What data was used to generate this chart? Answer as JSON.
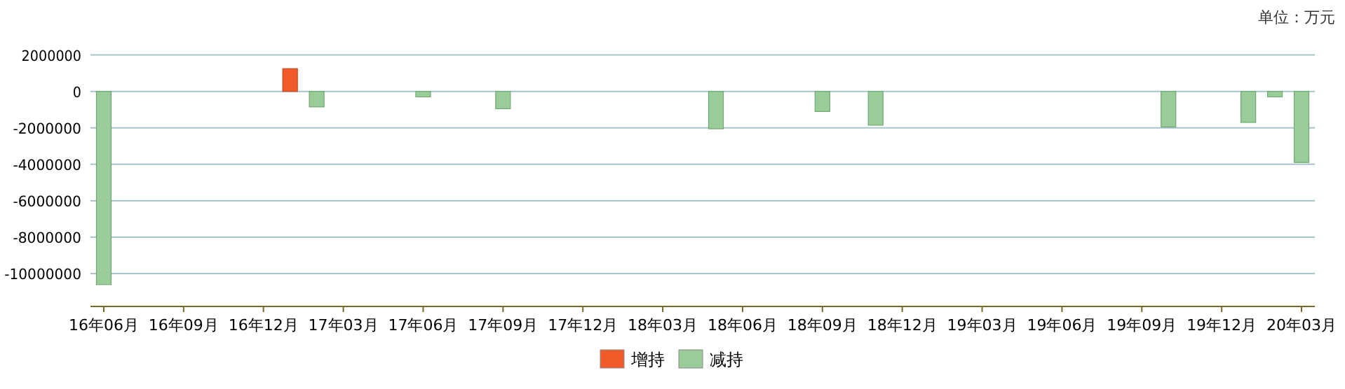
{
  "chart_data": {
    "type": "bar",
    "annotations": [
      "单位：万元"
    ],
    "categories": [
      "16年06月",
      null,
      null,
      "16年09月",
      null,
      null,
      "16年12月",
      null,
      null,
      "17年03月",
      null,
      null,
      "17年06月",
      null,
      null,
      "17年09月",
      null,
      null,
      "17年12月",
      null,
      null,
      "18年03月",
      null,
      null,
      "18年06月",
      null,
      null,
      "18年09月",
      null,
      null,
      "18年12月",
      null,
      null,
      "19年03月",
      null,
      null,
      "19年06月",
      null,
      null,
      "19年09月",
      null,
      null,
      "19年12月",
      null,
      null,
      "20年03月"
    ],
    "series": [
      {
        "name": "增持",
        "color": "#f05a28",
        "values": [
          null,
          null,
          null,
          null,
          null,
          null,
          null,
          1250000,
          null,
          null,
          null,
          null,
          null,
          null,
          null,
          null,
          null,
          null,
          null,
          null,
          null,
          null,
          null,
          null,
          null,
          null,
          null,
          null,
          null,
          null,
          null,
          null,
          null,
          null,
          null,
          null,
          null,
          null,
          null,
          null,
          null,
          null,
          null,
          null,
          null,
          null
        ]
      },
      {
        "name": "减持",
        "color": "#99cc99",
        "values": [
          -10600000,
          null,
          null,
          null,
          null,
          null,
          null,
          null,
          -850000,
          null,
          null,
          null,
          -300000,
          null,
          null,
          -950000,
          null,
          null,
          null,
          null,
          null,
          null,
          null,
          -2050000,
          null,
          null,
          null,
          -1100000,
          null,
          -1850000,
          null,
          null,
          null,
          null,
          null,
          null,
          null,
          null,
          null,
          null,
          -1950000,
          null,
          null,
          -1700000,
          -300000,
          -3900000
        ]
      }
    ],
    "ylim": [
      -11800000,
      2000000
    ],
    "yticks": [
      2000000,
      0,
      -2000000,
      -4000000,
      -6000000,
      -8000000,
      -10000000
    ],
    "grid": "y",
    "legend": "bottom"
  }
}
